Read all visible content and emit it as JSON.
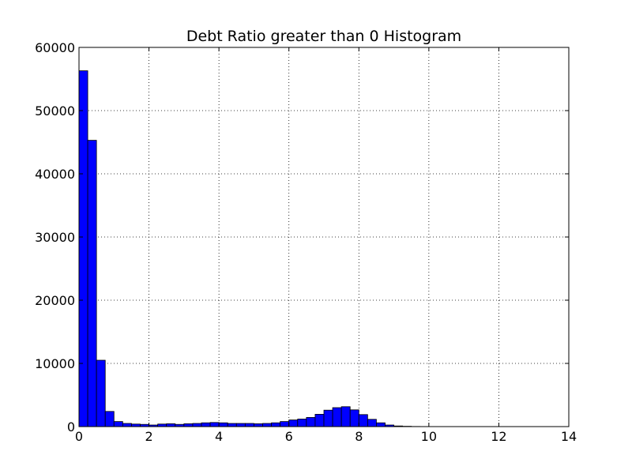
{
  "chart_data": {
    "type": "bar",
    "title": "Debt Ratio greater than 0 Histogram",
    "xlabel": "",
    "ylabel": "",
    "xlim": [
      0,
      14
    ],
    "ylim": [
      0,
      60000
    ],
    "grid": true,
    "bar_color": "#0000ff",
    "edge_color": "#000000",
    "x_ticks": [
      "0",
      "2",
      "4",
      "6",
      "8",
      "10",
      "12",
      "14"
    ],
    "y_ticks": [
      "0",
      "10000",
      "20000",
      "30000",
      "40000",
      "50000",
      "60000"
    ],
    "bins": {
      "start": 0,
      "width": 0.25,
      "counts": [
        56300,
        45300,
        10500,
        2400,
        800,
        500,
        400,
        350,
        250,
        400,
        450,
        350,
        450,
        500,
        600,
        650,
        600,
        500,
        500,
        500,
        450,
        500,
        600,
        800,
        1050,
        1200,
        1450,
        1950,
        2600,
        3000,
        3150,
        2650,
        1900,
        1150,
        600,
        250,
        100,
        50,
        20,
        10,
        10,
        10,
        10,
        10,
        10,
        10,
        10,
        10,
        10,
        10,
        5
      ]
    }
  }
}
